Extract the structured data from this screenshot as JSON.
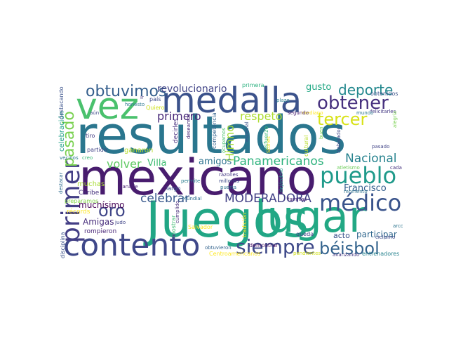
{
  "words": [
    {
      "text": "resultados",
      "color": "#2a768e"
    },
    {
      "text": "mexicano",
      "color": "#481c6e"
    },
    {
      "text": "Juegos",
      "color": "#21a685"
    },
    {
      "text": "lugar",
      "color": "#22a884"
    },
    {
      "text": "vez",
      "color": "#4ac16d"
    },
    {
      "text": "medalla",
      "color": "#3b528b"
    },
    {
      "text": "contento",
      "color": "#3f4889"
    },
    {
      "text": "primer",
      "color": "#433e85"
    },
    {
      "text": "pueblo",
      "color": "#1f9a8a"
    },
    {
      "text": "médicos",
      "color": "#3a548c"
    },
    {
      "text": "obtener",
      "color": "#46307e"
    },
    {
      "text": "siempre",
      "color": "#3e4989"
    },
    {
      "text": "obtuvimos",
      "color": "#355f8d"
    },
    {
      "text": "béisbol",
      "color": "#33638d"
    },
    {
      "text": "tercer",
      "color": "#d8e219"
    },
    {
      "text": "deporte",
      "color": "#23888e"
    },
    {
      "text": "oro",
      "color": "#404688"
    },
    {
      "text": "pasado",
      "color": "#7ad151"
    },
    {
      "text": "Nacional",
      "color": "#26828e"
    },
    {
      "text": "Panamericanos",
      "color": "#2db27d"
    },
    {
      "text": "celebrar",
      "color": "#38588c"
    },
    {
      "text": "MODERADORA",
      "color": "#424086"
    },
    {
      "text": "respeto",
      "color": "#addc30"
    },
    {
      "text": "primero",
      "color": "#482878"
    },
    {
      "text": "volver",
      "color": "#5ec962"
    },
    {
      "text": "revolucionario",
      "color": "#414487"
    },
    {
      "text": "Himno",
      "color": "#a2da37"
    },
    {
      "text": "Francisco",
      "color": "#355f8d"
    },
    {
      "text": "gusto",
      "color": "#22a884"
    },
    {
      "text": "amigos",
      "color": "#2c728e"
    },
    {
      "text": "Villa",
      "color": "#3fbc73"
    },
    {
      "text": "Amigas",
      "color": "#472d7b"
    },
    {
      "text": "muchísimo",
      "color": "#440154"
    },
    {
      "text": "participar",
      "color": "#31688e"
    },
    {
      "text": "acto",
      "color": "#3b528b"
    },
    {
      "text": "Caribe",
      "color": "#46327e"
    },
    {
      "text": "récords",
      "color": "#fde725"
    },
    {
      "text": "muchas",
      "color": "#a8db34"
    },
    {
      "text": "ganaron",
      "color": "#b5de2b"
    },
    {
      "text": "rompieron",
      "color": "#482677"
    },
    {
      "text": "celebración",
      "color": "#1fa088"
    },
    {
      "text": "preparamos",
      "color": "#84d44b"
    },
    {
      "text": "Centroamericanos",
      "color": "#fde725"
    },
    {
      "text": "destacando",
      "color": "#3b528b"
    },
    {
      "text": "primera",
      "color": "#2ab07f"
    },
    {
      "text": "país",
      "color": "#3e4989"
    },
    {
      "text": "obtenidos",
      "color": "#3b528b"
    },
    {
      "text": "felicitarles",
      "color": "#443983"
    },
    {
      "text": "importante",
      "color": "#2c728e"
    },
    {
      "text": "plazo",
      "color": "#287c8e"
    },
    {
      "text": "mediano",
      "color": "#fde725"
    },
    {
      "text": "aún",
      "color": "#3e4a89"
    },
    {
      "text": "Quiero",
      "color": "#d0e11c"
    },
    {
      "text": "honesto",
      "color": "#2a788e"
    },
    {
      "text": "tiro",
      "color": "#433d84"
    },
    {
      "text": "partido",
      "color": "#414487"
    },
    {
      "text": "decirles",
      "color": "#472f7d"
    },
    {
      "text": "competencia",
      "color": "#33638d"
    },
    {
      "text": "ocupamos",
      "color": "#4ac16d"
    },
    {
      "text": "esfuerzo",
      "color": "#3aba76"
    },
    {
      "text": "especial",
      "color": "#3b528b"
    },
    {
      "text": "segundo",
      "color": "#481f71"
    },
    {
      "text": "trabajador",
      "color": "#3f4788"
    },
    {
      "text": "pasado",
      "color": "#414487"
    },
    {
      "text": "cultural",
      "color": "#b8de29"
    },
    {
      "text": "buen",
      "color": "#7ad151"
    },
    {
      "text": "vecinos",
      "color": "#2a788e"
    },
    {
      "text": "creo",
      "color": "#38b977"
    },
    {
      "text": "atletismo",
      "color": "#6ccd5a"
    },
    {
      "text": "cada",
      "color": "#46327e"
    },
    {
      "text": "razones",
      "color": "#443a83"
    },
    {
      "text": "millones",
      "color": "#3e4a89"
    },
    {
      "text": "puerta",
      "color": "#2d708e"
    },
    {
      "text": "permite",
      "color": "#287d8e"
    },
    {
      "text": "largo",
      "color": "#39568c"
    },
    {
      "text": "ganarle",
      "color": "#482173"
    },
    {
      "text": "momento",
      "color": "#2c718e"
    },
    {
      "text": "ciclismo",
      "color": "#3e4989"
    },
    {
      "text": "dejándolo",
      "color": "#1e9b8a"
    },
    {
      "text": "familias",
      "color": "#482475"
    },
    {
      "text": "Mundial",
      "color": "#2e6e8e"
    },
    {
      "text": "judo",
      "color": "#404588"
    },
    {
      "text": "Salvador",
      "color": "#fde725"
    },
    {
      "text": "arco",
      "color": "#2b748e"
    },
    {
      "text": "queda",
      "color": "#414487"
    },
    {
      "text": "tradición",
      "color": "#fde725"
    },
    {
      "text": "demostrar",
      "color": "#481567"
    },
    {
      "text": "pendientes",
      "color": "#d2e21b"
    },
    {
      "text": "avanzando",
      "color": "#453781"
    },
    {
      "text": "entrenadores",
      "color": "#26828e"
    },
    {
      "text": "obtuvieron",
      "color": "#33638d"
    },
    {
      "text": "disciplina",
      "color": "#3b528b"
    },
    {
      "text": "deseamos",
      "color": "#482878"
    },
    {
      "text": "destacar",
      "color": "#2f6c8e"
    },
    {
      "text": "ir",
      "color": "#46327e"
    },
    {
      "text": "Stones",
      "color": "#fde725"
    },
    {
      "text": "mostrar",
      "color": "#3fbc73"
    },
    {
      "text": "alegría",
      "color": "#7ad151"
    },
    {
      "text": "mundo",
      "color": "#2a768e"
    },
    {
      "text": "cumplido",
      "color": "#472c7a"
    }
  ]
}
